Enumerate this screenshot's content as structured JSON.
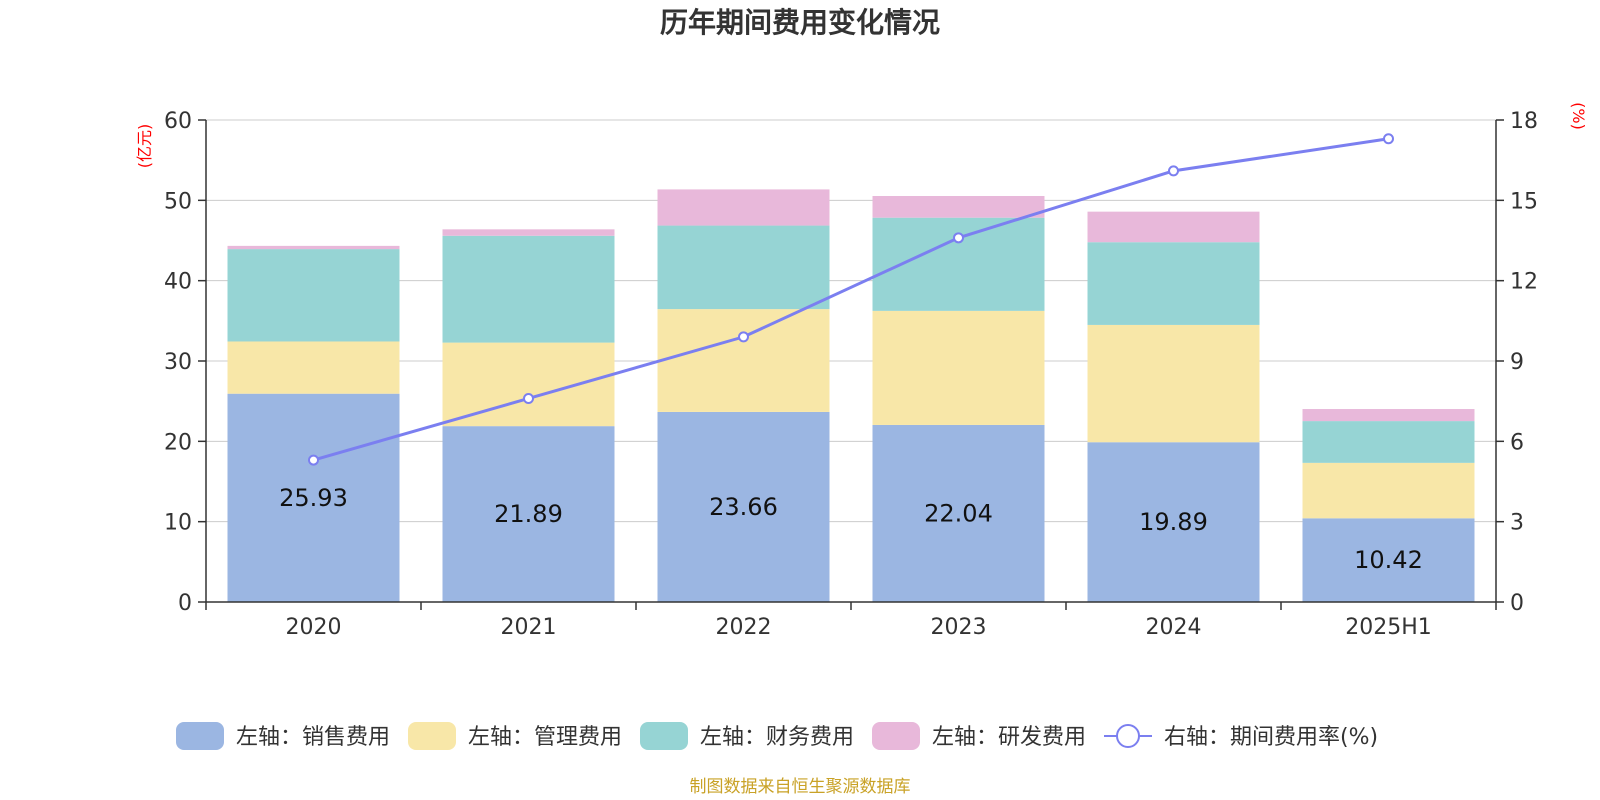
{
  "chart_data": {
    "type": "bar",
    "stacked": true,
    "title": "历年期间费用变化情况",
    "categories": [
      "2020",
      "2021",
      "2022",
      "2023",
      "2024",
      "2025H1"
    ],
    "left_axis": {
      "name": "(亿元)",
      "min": 0,
      "max": 60,
      "step": 10,
      "ticks": [
        "0",
        "10",
        "20",
        "30",
        "40",
        "50",
        "60"
      ]
    },
    "right_axis": {
      "name": "(%)",
      "min": 0,
      "max": 18,
      "step": 3,
      "ticks": [
        "0",
        "3",
        "6",
        "9",
        "12",
        "15",
        "18"
      ]
    },
    "grid": true,
    "legend_position": "bottom",
    "series": [
      {
        "name": "左轴：销售费用",
        "axis": "left",
        "type": "bar",
        "color": "#9bb6e2",
        "values": [
          25.93,
          21.89,
          23.66,
          22.04,
          19.89,
          10.42
        ],
        "show_labels": true
      },
      {
        "name": "左轴：管理费用",
        "axis": "left",
        "type": "bar",
        "color": "#f8e7a8",
        "values": [
          6.5,
          10.4,
          12.8,
          14.2,
          14.6,
          6.9
        ]
      },
      {
        "name": "左轴：财务费用",
        "axis": "left",
        "type": "bar",
        "color": "#96d4d4",
        "values": [
          11.5,
          13.3,
          10.4,
          11.6,
          10.3,
          5.2
        ]
      },
      {
        "name": "左轴：研发费用",
        "axis": "left",
        "type": "bar",
        "color": "#e8b8da",
        "values": [
          0.4,
          0.8,
          4.5,
          2.7,
          3.8,
          1.5
        ]
      },
      {
        "name": "右轴：期间费用率(%)",
        "axis": "right",
        "type": "line",
        "color": "#7b7ff0",
        "values": [
          5.3,
          7.6,
          9.9,
          13.6,
          16.1,
          17.3
        ]
      }
    ]
  },
  "footer": {
    "source": "制图数据来自恒生聚源数据库"
  }
}
